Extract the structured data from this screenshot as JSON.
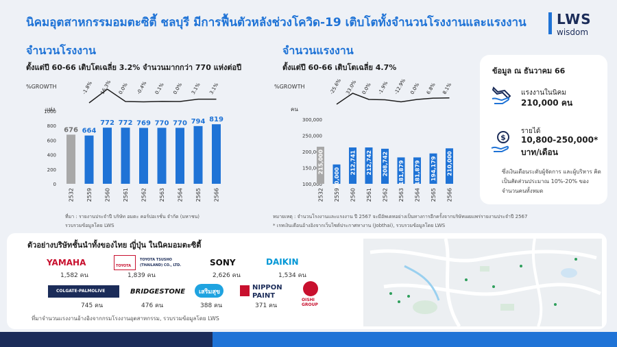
{
  "header": {
    "title": "นิคมอุตสาหกรรมอมตะซิตี้ ชลบุรี มีการฟื้นตัวหลังช่วงโควิด-19 เติบโตทั้งจำนวนโรงงานและแรงงาน",
    "logo_main": "LWS",
    "logo_sub": "wisdom"
  },
  "factories": {
    "title": "จำนวนโรงงาน",
    "subtitle": "ตั้งแต่ปี 60-66 เติบโตเฉลี่ย 3.2% จำนวนมากกว่า 770 แห่งต่อปี",
    "growth_label": "%GROWTH",
    "unit_label": "แห่ง",
    "source_line1": "ที่มา : รายงานประจำปี บริษัท อมตะ คอร์ปอเรชั่น จำกัด (มหาชน)",
    "source_line2": "รวบรวมข้อมูลโดย LWS"
  },
  "labor": {
    "title": "จำนวนแรงงาน",
    "subtitle": "ตั้งแต่ปี 60-66 เติบโตเฉลี่ย 4.7%",
    "growth_label": "%GROWTH",
    "unit_label": "คน",
    "note_line1": "หมายเหตุ : จำนวนโรงงานและแรงงาน ปี 2567 จะมีอัพเดทอย่างเป็นทางการอีกครั้งจากบริษัทเผยแพร่รายงานประจำปี 2567",
    "note_line2": "* เรทเงินเดือนอ้างอิงจากเว็บไซต์ประกาศหางาน (Jobthai), รวบรวมข้อมูลโดย LWS"
  },
  "info_panel": {
    "title": "ข้อมูล ณ ธันวาคม 66",
    "workers_label": "แรงงานในนิคม",
    "workers_value": "210,000 คน",
    "income_label": "รายได้",
    "income_value": "10,800-250,000*",
    "income_unit": "บาท/เดือน",
    "note": "ซึ่งเงินเดือนระดับผู้จัดการ และผู้บริหาร คิดเป็นสัดส่วนประมาณ 10%-20% ของจำนวนคนทั้งหมด",
    "wrench_icon": "wrench-hand-icon",
    "money_icon": "money-hand-icon"
  },
  "companies": {
    "title": "ตัวอย่างบริษัทชั้นนำทั้งของไทย ญี่ปุ่น ในนิคมอมตะซิตี้",
    "items": [
      {
        "name": "YAMAHA",
        "count": "1,582 คน",
        "color": "#c8102e"
      },
      {
        "name": "TOYOTA",
        "name2": "TOYOTA TSUSHO",
        "name3": "(THAILAND) CO., LTD.",
        "count": "1,839 คน",
        "color": "#c8102e"
      },
      {
        "name": "SONY",
        "count": "2,626 คน",
        "color": "#111111"
      },
      {
        "name": "DAIKIN",
        "count": "1,534 คน",
        "color": "#0097d6"
      },
      {
        "name": "COLGATE-PALMOLIVE",
        "count": "745 คน",
        "color": "#1b2c59"
      },
      {
        "name": "BRIDGESTONE",
        "count": "476 คน",
        "color": "#111111"
      },
      {
        "name": "เสริมสุข",
        "count": "388 คน",
        "color": "#1fa3e0"
      },
      {
        "name": "NIPPON",
        "name2": "PAINT",
        "count": "371 คน",
        "color": "#1b2c59"
      },
      {
        "name": "OISHI",
        "name2": "GROUP",
        "count": "",
        "color": "#c8102e"
      }
    ],
    "source": "ที่มาจำนวนแรงงานอ้างอิงจากกรมโรงงานอุตสาหกรรม, รวบรวมข้อมูลโดย LWS"
  },
  "chart_data": [
    {
      "type": "bar",
      "title": "จำนวนโรงงาน",
      "categories": [
        "2532",
        "2559",
        "2560",
        "2561",
        "2562",
        "2563",
        "2564",
        "2565",
        "2566"
      ],
      "values": [
        676,
        664,
        772,
        772,
        769,
        770,
        770,
        794,
        819
      ],
      "value_labels": [
        "676",
        "664",
        "772",
        "772",
        "769",
        "770",
        "770",
        "794",
        "819"
      ],
      "growth": [
        null,
        "-1.8%",
        "16.3%",
        "0.0%",
        "-0.4%",
        "0.1%",
        "0.0%",
        "3.1%",
        "3.1%"
      ],
      "growth_values": [
        null,
        -1.8,
        16.3,
        0.0,
        -0.4,
        0.1,
        0.0,
        3.1,
        3.1
      ],
      "ylabel": "แห่ง",
      "ylim": [
        0,
        1000
      ],
      "yticks": [
        "0",
        "200",
        "400",
        "600",
        "800",
        "1000"
      ],
      "ytick_values": [
        0,
        200,
        400,
        600,
        800,
        1000
      ],
      "colors": {
        "first": "#a8a8a8",
        "rest": "#1f73d6",
        "label_first": "#707070",
        "label_rest": "#1f73d6"
      }
    },
    {
      "type": "bar",
      "title": "จำนวนแรงงาน",
      "categories": [
        "2532",
        "2559",
        "2560",
        "2561",
        "2562",
        "2563",
        "2564",
        "2565",
        "2566"
      ],
      "values": [
        215000,
        160000,
        212741,
        212742,
        208742,
        181879,
        181879,
        194179,
        210000
      ],
      "value_labels": [
        "215,000",
        "160,000",
        "212,741",
        "212,742",
        "208,742",
        "181,879",
        "181,879",
        "194,179",
        "210,000"
      ],
      "growth": [
        null,
        "-25.6%",
        "33.0%",
        "0.0%",
        "-1.9%",
        "-12.9%",
        "0.0%",
        "6.8%",
        "8.1%"
      ],
      "growth_values": [
        null,
        -25.6,
        33.0,
        0.0,
        -1.9,
        -12.9,
        0.0,
        6.8,
        8.1
      ],
      "ylabel": "คน",
      "ylim": [
        100000,
        300000
      ],
      "yticks": [
        "100,000",
        "150,000",
        "200,000",
        "250,000",
        "300,000"
      ],
      "ytick_values": [
        100000,
        150000,
        200000,
        250000,
        300000
      ],
      "colors": {
        "first": "#a8a8a8",
        "rest": "#1f73d6",
        "label_first": "#ffffff",
        "label_rest": "#ffffff"
      }
    }
  ],
  "footer": {
    "colors": [
      "#1b2c59",
      "#1f73d6"
    ]
  }
}
